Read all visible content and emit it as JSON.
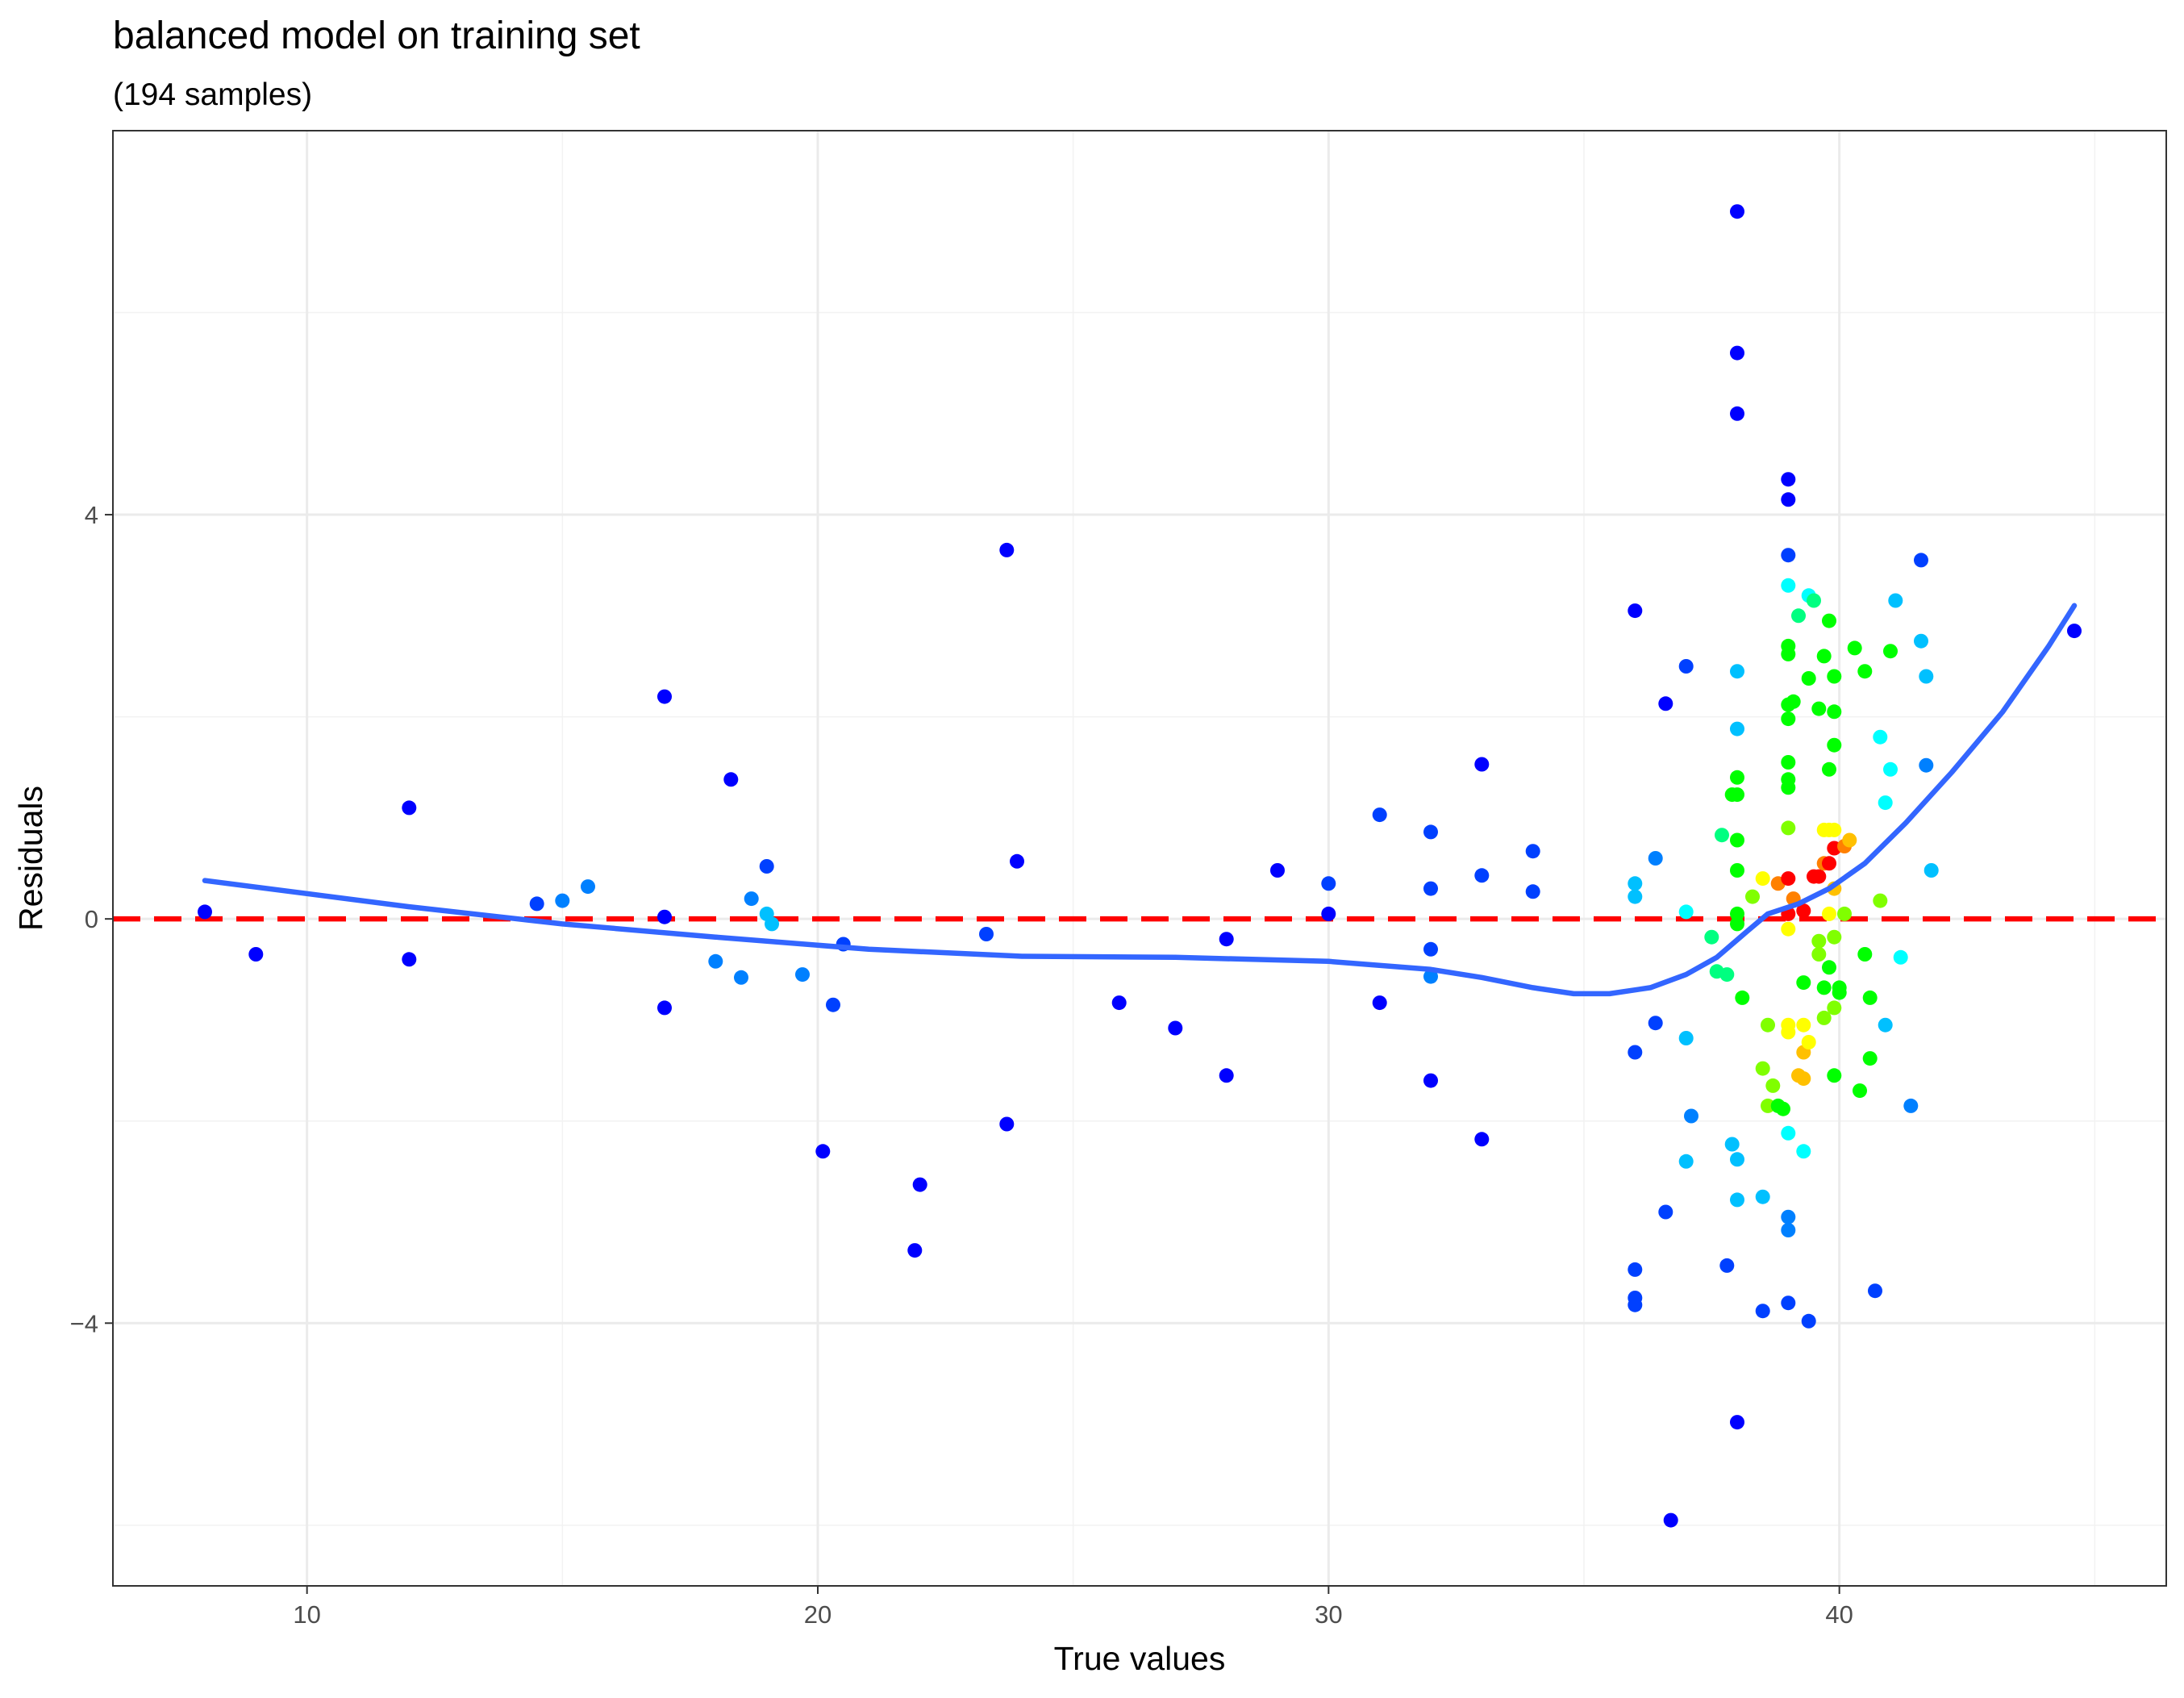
{
  "chart_data": {
    "type": "scatter",
    "title": "balanced model on training set",
    "subtitle": "(194 samples)",
    "xlabel": "True values",
    "ylabel": "Residuals",
    "xlim": [
      6.2,
      46.4
    ],
    "ylim": [
      -6.6,
      7.8
    ],
    "x_ticks": [
      10,
      20,
      30,
      40
    ],
    "y_ticks": [
      -4,
      0,
      4
    ],
    "x_ticks_text": [
      "10",
      "20",
      "30",
      "40"
    ],
    "y_ticks_text": [
      "−4",
      "0",
      "4"
    ],
    "x_minor": [
      15,
      25,
      35,
      45
    ],
    "y_minor": [
      -6,
      -2,
      2,
      6
    ],
    "grid": true,
    "reference_line": {
      "y": 0,
      "color": "#ff0000",
      "style": "dashed"
    },
    "smooth_line": {
      "color": "#3366ff",
      "points": [
        [
          8,
          0.38
        ],
        [
          12,
          0.12
        ],
        [
          15,
          -0.05
        ],
        [
          18,
          -0.18
        ],
        [
          21,
          -0.3
        ],
        [
          24,
          -0.37
        ],
        [
          27,
          -0.38
        ],
        [
          30,
          -0.42
        ],
        [
          32,
          -0.5
        ],
        [
          33,
          -0.58
        ],
        [
          34,
          -0.68
        ],
        [
          34.8,
          -0.74
        ],
        [
          35.5,
          -0.74
        ],
        [
          36.3,
          -0.68
        ],
        [
          37,
          -0.55
        ],
        [
          37.6,
          -0.38
        ],
        [
          38.2,
          -0.12
        ],
        [
          38.6,
          0.05
        ],
        [
          39.2,
          0.15
        ],
        [
          39.8,
          0.3
        ],
        [
          40.5,
          0.55
        ],
        [
          41.3,
          0.95
        ],
        [
          42.2,
          1.45
        ],
        [
          43.2,
          2.05
        ],
        [
          44.1,
          2.7
        ],
        [
          44.6,
          3.1
        ]
      ]
    },
    "palette": [
      "#0000ff",
      "#0040ff",
      "#0080ff",
      "#00c0ff",
      "#00ffff",
      "#00ff80",
      "#00ff00",
      "#80ff00",
      "#ffff00",
      "#ffc000",
      "#ff8000",
      "#ff0000"
    ],
    "points": [
      [
        8,
        0.07,
        0
      ],
      [
        9,
        -0.35,
        0
      ],
      [
        12,
        1.1,
        0
      ],
      [
        12,
        -0.4,
        0
      ],
      [
        14.5,
        0.15,
        1
      ],
      [
        15,
        0.18,
        2
      ],
      [
        15.5,
        0.32,
        2
      ],
      [
        17,
        2.2,
        0
      ],
      [
        17,
        0.02,
        0
      ],
      [
        17,
        -0.88,
        0
      ],
      [
        18,
        -0.42,
        2
      ],
      [
        18.3,
        1.38,
        0
      ],
      [
        18.5,
        -0.58,
        2
      ],
      [
        18.7,
        0.2,
        2
      ],
      [
        19,
        0.52,
        1
      ],
      [
        19,
        0.05,
        3
      ],
      [
        19.1,
        -0.05,
        3
      ],
      [
        19.7,
        -0.55,
        2
      ],
      [
        20.1,
        -2.3,
        0
      ],
      [
        20.3,
        -0.85,
        1
      ],
      [
        20.5,
        -0.25,
        1
      ],
      [
        21.9,
        -3.28,
        0
      ],
      [
        22,
        -2.63,
        0
      ],
      [
        23.3,
        -0.15,
        1
      ],
      [
        23.7,
        3.65,
        0
      ],
      [
        23.7,
        -2.03,
        0
      ],
      [
        23.9,
        0.57,
        0
      ],
      [
        25.9,
        -0.83,
        0
      ],
      [
        27,
        -1.08,
        0
      ],
      [
        28,
        -0.2,
        0
      ],
      [
        28,
        -1.55,
        0
      ],
      [
        29,
        0.48,
        0
      ],
      [
        30,
        0.05,
        0
      ],
      [
        30,
        0.35,
        1
      ],
      [
        31,
        1.03,
        1
      ],
      [
        31,
        -0.83,
        0
      ],
      [
        32,
        0.86,
        1
      ],
      [
        32,
        0.3,
        1
      ],
      [
        32,
        -0.3,
        1
      ],
      [
        32,
        -0.57,
        2
      ],
      [
        32,
        -1.6,
        0
      ],
      [
        33,
        1.53,
        0
      ],
      [
        33,
        0.43,
        1
      ],
      [
        33,
        -2.18,
        0
      ],
      [
        34,
        0.67,
        1
      ],
      [
        34,
        0.27,
        1
      ],
      [
        36,
        3.05,
        0
      ],
      [
        36,
        0.35,
        3
      ],
      [
        36,
        0.22,
        3
      ],
      [
        36,
        -1.32,
        1
      ],
      [
        36,
        -3.47,
        1
      ],
      [
        36,
        -3.75,
        1
      ],
      [
        36,
        -3.82,
        1
      ],
      [
        36.4,
        0.6,
        2
      ],
      [
        36.4,
        -1.03,
        1
      ],
      [
        36.6,
        2.13,
        0
      ],
      [
        36.6,
        -2.9,
        1
      ],
      [
        36.7,
        -5.95,
        0
      ],
      [
        37,
        2.5,
        1
      ],
      [
        37,
        0.07,
        4
      ],
      [
        37,
        -1.18,
        3
      ],
      [
        37,
        -2.4,
        3
      ],
      [
        37.1,
        -1.95,
        2
      ],
      [
        37.5,
        -0.18,
        5
      ],
      [
        37.6,
        -0.52,
        5
      ],
      [
        37.7,
        0.83,
        5
      ],
      [
        37.8,
        -0.55,
        5
      ],
      [
        37.8,
        -3.43,
        1
      ],
      [
        37.9,
        -2.23,
        3
      ],
      [
        37.9,
        1.23,
        6
      ],
      [
        38,
        7.0,
        0
      ],
      [
        38,
        5.6,
        0
      ],
      [
        38,
        5.0,
        0
      ],
      [
        38,
        2.45,
        3
      ],
      [
        38,
        1.88,
        3
      ],
      [
        38,
        1.4,
        6
      ],
      [
        38,
        1.23,
        6
      ],
      [
        38,
        0.78,
        6
      ],
      [
        38,
        0.48,
        6
      ],
      [
        38,
        0.05,
        6
      ],
      [
        38,
        -0.05,
        6
      ],
      [
        38,
        -2.38,
        3
      ],
      [
        38,
        -2.78,
        3
      ],
      [
        38,
        -4.98,
        0
      ],
      [
        38.1,
        -0.78,
        6
      ],
      [
        38.3,
        0.22,
        7
      ],
      [
        38.5,
        0.4,
        8
      ],
      [
        38.5,
        -1.48,
        7
      ],
      [
        38.5,
        -2.75,
        3
      ],
      [
        38.5,
        -3.88,
        1
      ],
      [
        38.6,
        -1.05,
        7
      ],
      [
        38.6,
        -1.85,
        7
      ],
      [
        38.7,
        -1.65,
        7
      ],
      [
        38.8,
        -1.85,
        6
      ],
      [
        38.8,
        0.35,
        10
      ],
      [
        38.9,
        -1.88,
        6
      ],
      [
        39,
        4.35,
        0
      ],
      [
        39,
        4.15,
        0
      ],
      [
        39,
        3.6,
        1
      ],
      [
        39,
        3.3,
        4
      ],
      [
        39,
        2.7,
        6
      ],
      [
        39,
        2.62,
        6
      ],
      [
        39,
        2.12,
        6
      ],
      [
        39,
        1.98,
        6
      ],
      [
        39,
        1.55,
        6
      ],
      [
        39,
        1.38,
        6
      ],
      [
        39,
        1.3,
        6
      ],
      [
        39,
        0.9,
        7
      ],
      [
        39,
        0.4,
        11
      ],
      [
        39,
        0.05,
        11
      ],
      [
        39,
        -0.1,
        8
      ],
      [
        39,
        -1.05,
        8
      ],
      [
        39,
        -1.12,
        8
      ],
      [
        39,
        -2.12,
        4
      ],
      [
        39,
        -2.95,
        2
      ],
      [
        39,
        -3.08,
        2
      ],
      [
        39,
        -3.8,
        1
      ],
      [
        39.1,
        2.15,
        6
      ],
      [
        39.1,
        0.2,
        10
      ],
      [
        39.2,
        -1.55,
        9
      ],
      [
        39.2,
        3.0,
        5
      ],
      [
        39.3,
        -0.63,
        6
      ],
      [
        39.3,
        -1.05,
        8
      ],
      [
        39.3,
        -1.58,
        9
      ],
      [
        39.3,
        -1.32,
        9
      ],
      [
        39.3,
        0.08,
        11
      ],
      [
        39.3,
        -2.3,
        4
      ],
      [
        39.4,
        3.2,
        4
      ],
      [
        39.4,
        2.38,
        6
      ],
      [
        39.4,
        -1.22,
        8
      ],
      [
        39.4,
        -3.98,
        1
      ],
      [
        39.5,
        0.42,
        11
      ],
      [
        39.5,
        3.15,
        5
      ],
      [
        39.6,
        2.08,
        6
      ],
      [
        39.6,
        0.42,
        11
      ],
      [
        39.6,
        -0.22,
        7
      ],
      [
        39.6,
        -0.35,
        7
      ],
      [
        39.7,
        2.6,
        6
      ],
      [
        39.7,
        0.88,
        8
      ],
      [
        39.7,
        0.55,
        10
      ],
      [
        39.7,
        -0.68,
        6
      ],
      [
        39.7,
        -0.98,
        7
      ],
      [
        39.8,
        0.05,
        8
      ],
      [
        39.8,
        0.88,
        8
      ],
      [
        39.8,
        1.48,
        6
      ],
      [
        39.8,
        2.95,
        6
      ],
      [
        39.8,
        0.55,
        11
      ],
      [
        39.8,
        -0.48,
        6
      ],
      [
        39.9,
        -0.88,
        7
      ],
      [
        39.9,
        0.7,
        11
      ],
      [
        39.9,
        0.88,
        8
      ],
      [
        39.9,
        1.72,
        6
      ],
      [
        39.9,
        2.05,
        6
      ],
      [
        39.9,
        2.4,
        6
      ],
      [
        39.9,
        -0.18,
        7
      ],
      [
        39.9,
        -1.55,
        6
      ],
      [
        39.9,
        0.3,
        9
      ],
      [
        40,
        -0.73,
        6
      ],
      [
        40,
        -0.68,
        6
      ],
      [
        40.1,
        0.05,
        7
      ],
      [
        40.1,
        0.72,
        10
      ],
      [
        40.2,
        0.78,
        9
      ],
      [
        40.3,
        2.68,
        6
      ],
      [
        40.4,
        -1.7,
        6
      ],
      [
        40.5,
        2.45,
        6
      ],
      [
        40.5,
        -0.35,
        6
      ],
      [
        40.6,
        -0.78,
        6
      ],
      [
        40.6,
        -1.38,
        6
      ],
      [
        40.7,
        -3.68,
        1
      ],
      [
        40.8,
        1.8,
        4
      ],
      [
        40.8,
        0.18,
        7
      ],
      [
        40.9,
        1.15,
        4
      ],
      [
        40.9,
        -1.05,
        3
      ],
      [
        41,
        2.65,
        6
      ],
      [
        41,
        1.48,
        4
      ],
      [
        41.1,
        3.15,
        3
      ],
      [
        41.2,
        -0.38,
        4
      ],
      [
        41.4,
        -1.85,
        2
      ],
      [
        41.6,
        3.55,
        1
      ],
      [
        41.6,
        2.75,
        3
      ],
      [
        41.7,
        2.4,
        3
      ],
      [
        41.7,
        1.52,
        2
      ],
      [
        41.8,
        0.48,
        3
      ],
      [
        44.6,
        2.85,
        0
      ]
    ]
  }
}
